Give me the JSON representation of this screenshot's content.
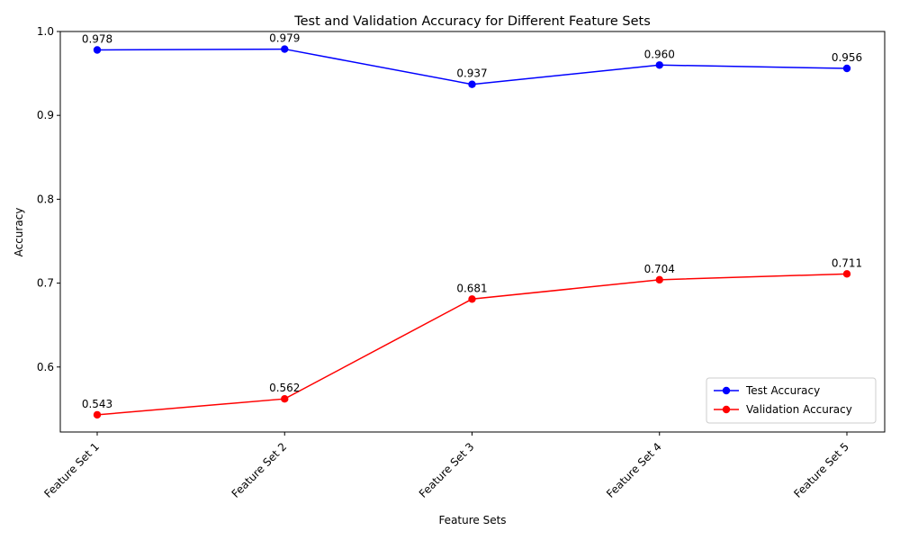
{
  "chart_data": {
    "type": "line",
    "title": "Test and Validation Accuracy for Different Feature Sets",
    "xlabel": "Feature Sets",
    "ylabel": "Accuracy",
    "categories": [
      "Feature Set 1",
      "Feature Set 2",
      "Feature Set 3",
      "Feature Set 4",
      "Feature Set 5"
    ],
    "ylim": [
      0.5225,
      1.0
    ],
    "yticks": [
      0.6,
      0.7,
      0.8,
      0.9,
      1.0
    ],
    "ytick_labels": [
      "0.6",
      "0.7",
      "0.8",
      "0.9",
      "1.0"
    ],
    "grid": false,
    "legend_position": "lower right",
    "series": [
      {
        "name": "Test Accuracy",
        "color": "#0000ff",
        "marker": "circle",
        "values": [
          0.978,
          0.979,
          0.937,
          0.96,
          0.956
        ],
        "labels": [
          "0.978",
          "0.979",
          "0.937",
          "0.960",
          "0.956"
        ]
      },
      {
        "name": "Validation Accuracy",
        "color": "#ff0000",
        "marker": "circle",
        "values": [
          0.543,
          0.562,
          0.681,
          0.704,
          0.711
        ],
        "labels": [
          "0.543",
          "0.562",
          "0.681",
          "0.704",
          "0.711"
        ]
      }
    ]
  }
}
